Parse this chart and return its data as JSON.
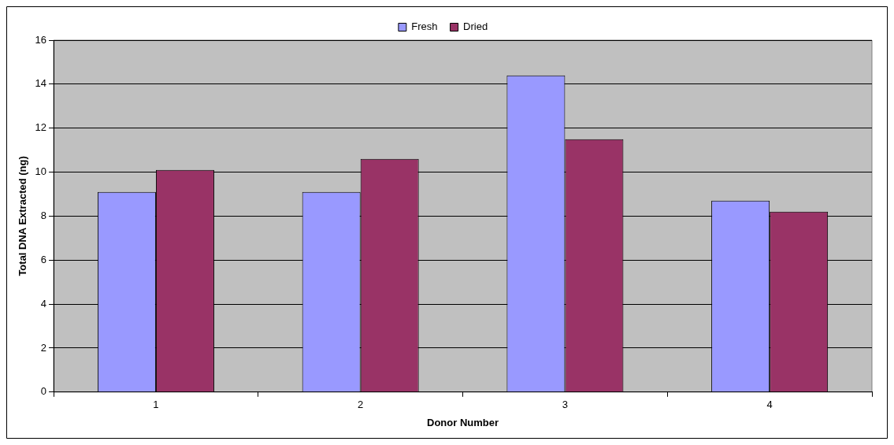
{
  "chart_data": {
    "type": "bar",
    "xlabel": "Donor Number",
    "ylabel": "Total DNA Extracted (ng)",
    "categories": [
      "1",
      "2",
      "3",
      "4"
    ],
    "series": [
      {
        "name": "Fresh",
        "color": "#9999ff",
        "values": [
          9.1,
          9.1,
          14.4,
          8.7
        ]
      },
      {
        "name": "Dried",
        "color": "#993366",
        "values": [
          10.1,
          10.6,
          11.5,
          8.2
        ]
      }
    ],
    "ylim": [
      0,
      16
    ],
    "yticks": [
      0,
      2,
      4,
      6,
      8,
      10,
      12,
      14,
      16
    ],
    "grid": "y",
    "legend": "top"
  }
}
